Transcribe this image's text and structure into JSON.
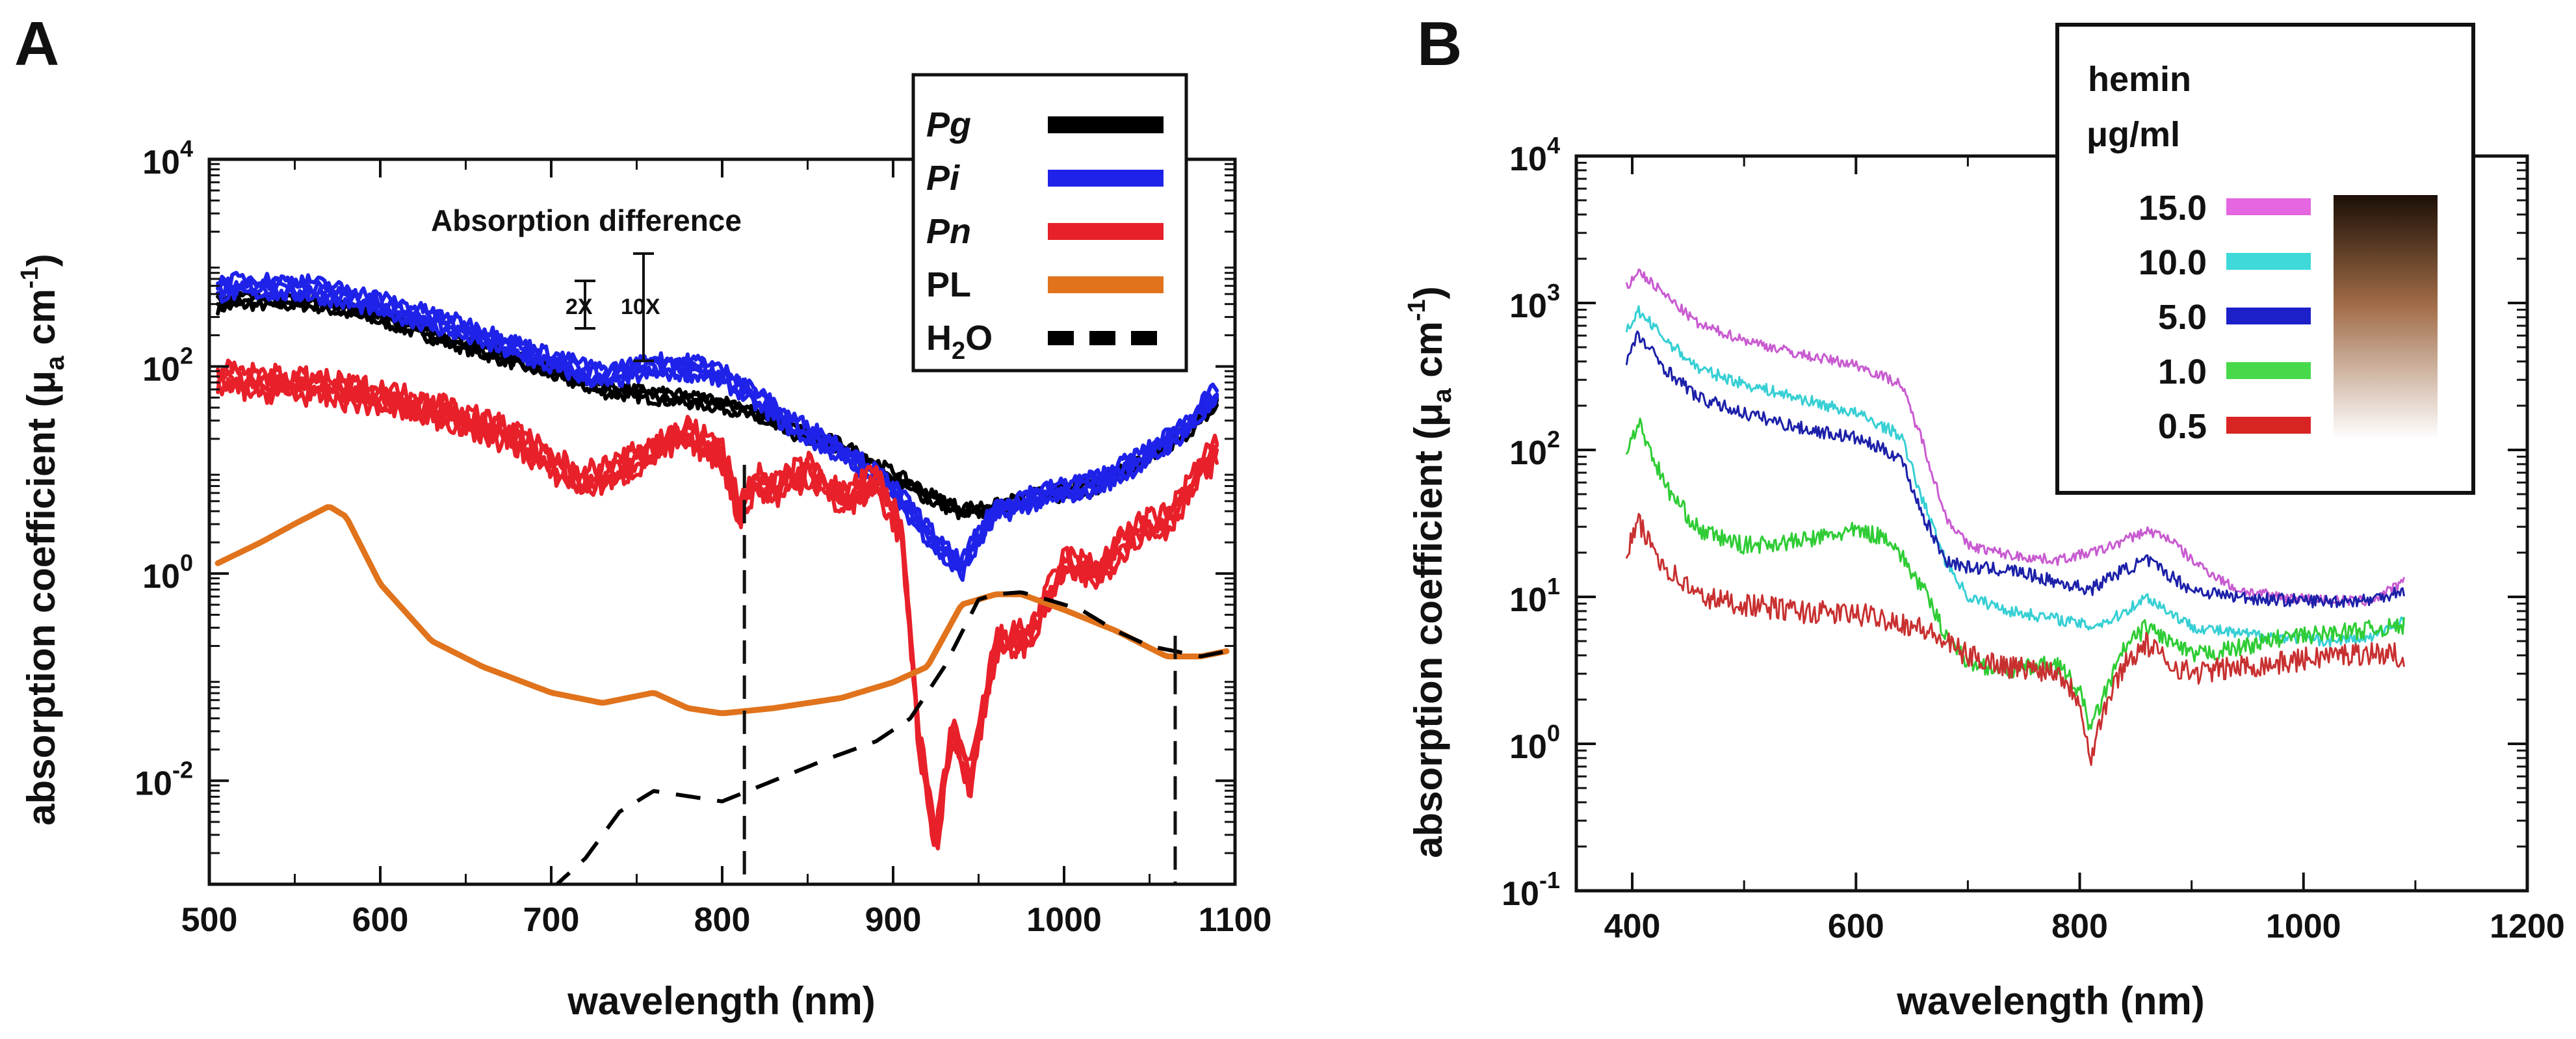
{
  "chart_data": [
    {
      "panel": "A",
      "type": "line",
      "yscale": "log",
      "xlabel": "wavelength (nm)",
      "ylabel": "absorption coefficient (μa cm-1)",
      "ylabel_parts": {
        "prefix": "absorption coefficient (",
        "mu": "μ",
        "sub": "a",
        "unit": " cm",
        "sup": "-1",
        "suffix": ")"
      },
      "xlim": [
        500,
        1100
      ],
      "ylim_log10": [
        -3.0,
        4.0
      ],
      "xticks": [
        500,
        600,
        700,
        800,
        900,
        1000,
        1100
      ],
      "xtick_labels": [
        "500",
        "600",
        "700",
        "800",
        "900",
        "1000",
        "1100"
      ],
      "yticks_log10": [
        -2,
        0,
        2,
        4
      ],
      "ytick_labels": [
        {
          "base": "10",
          "exp": "-2"
        },
        {
          "base": "10",
          "exp": "0"
        },
        {
          "base": "10",
          "exp": "2"
        },
        {
          "base": "10",
          "exp": "4"
        }
      ],
      "annotations": {
        "title": "Absorption difference",
        "scale_2x": "2X",
        "scale_10x": "10X"
      },
      "vlines_nm": [
        813,
        1065
      ],
      "legend": [
        {
          "label": "Pg",
          "italic": true,
          "color": "#000000",
          "dashed": false
        },
        {
          "label": "Pi",
          "italic": true,
          "color": "#1f22e8",
          "dashed": false
        },
        {
          "label": "Pn",
          "italic": true,
          "color": "#e8202a",
          "dashed": false
        },
        {
          "label": "PL",
          "italic": false,
          "color": "#e0731c",
          "dashed": false
        },
        {
          "label": "H",
          "sub": "2",
          "tail": "O",
          "italic": false,
          "color": "#000000",
          "dashed": true
        }
      ],
      "series": [
        {
          "name": "Pg",
          "color": "#000000",
          "width": 6,
          "noise": 0.05,
          "copies": 3,
          "spread": 0.04,
          "x": [
            505,
            520,
            560,
            600,
            650,
            700,
            730,
            760,
            790,
            810,
            840,
            870,
            900,
            920,
            940,
            960,
            980,
            1000,
            1020,
            1050,
            1070,
            1090
          ],
          "y": [
            2.6,
            2.63,
            2.62,
            2.47,
            2.2,
            1.95,
            1.78,
            1.72,
            1.66,
            1.6,
            1.38,
            1.22,
            0.95,
            0.75,
            0.6,
            0.63,
            0.73,
            0.78,
            0.86,
            1.12,
            1.35,
            1.65
          ]
        },
        {
          "name": "Pi",
          "color": "#1f22e8",
          "width": 6,
          "noise": 0.06,
          "copies": 4,
          "spread": 0.05,
          "x": [
            505,
            520,
            560,
            600,
            650,
            700,
            730,
            760,
            790,
            810,
            840,
            870,
            900,
            920,
            930,
            940,
            950,
            960,
            980,
            1000,
            1020,
            1050,
            1070,
            1090
          ],
          "y": [
            2.75,
            2.78,
            2.75,
            2.6,
            2.35,
            2.05,
            1.9,
            2.0,
            1.98,
            1.82,
            1.45,
            1.18,
            0.8,
            0.4,
            0.2,
            0.05,
            0.35,
            0.6,
            0.72,
            0.8,
            0.88,
            1.15,
            1.4,
            1.75
          ]
        },
        {
          "name": "Pn",
          "color": "#e8202a",
          "width": 6,
          "noise": 0.1,
          "copies": 4,
          "spread": 0.06,
          "x": [
            505,
            530,
            560,
            600,
            640,
            680,
            700,
            720,
            740,
            760,
            780,
            800,
            810,
            820,
            830,
            850,
            870,
            890,
            905,
            915,
            925,
            935,
            945,
            960,
            980,
            1000,
            1020,
            1040,
            1060,
            1080,
            1090
          ],
          "y": [
            1.88,
            1.84,
            1.8,
            1.7,
            1.55,
            1.3,
            1.05,
            0.9,
            1.0,
            1.2,
            1.35,
            1.15,
            0.6,
            0.9,
            0.8,
            1.0,
            0.7,
            0.9,
            0.4,
            -1.6,
            -2.6,
            -1.5,
            -2.0,
            -0.7,
            -0.6,
            0.1,
            0.0,
            0.4,
            0.5,
            1.0,
            1.2
          ]
        },
        {
          "name": "PL",
          "color": "#e0731c",
          "width": 9,
          "noise": 0.0,
          "copies": 1,
          "spread": 0.0,
          "x": [
            505,
            530,
            550,
            570,
            580,
            600,
            630,
            660,
            700,
            730,
            760,
            780,
            800,
            830,
            870,
            900,
            920,
            940,
            960,
            975,
            1000,
            1030,
            1060,
            1080,
            1095
          ],
          "y": [
            0.1,
            0.3,
            0.48,
            0.65,
            0.55,
            -0.1,
            -0.65,
            -0.9,
            -1.15,
            -1.25,
            -1.15,
            -1.3,
            -1.35,
            -1.3,
            -1.2,
            -1.05,
            -0.9,
            -0.3,
            -0.2,
            -0.2,
            -0.35,
            -0.55,
            -0.8,
            -0.8,
            -0.75
          ]
        },
        {
          "name": "H2O",
          "color": "#000000",
          "width": 6,
          "noise": 0.0,
          "copies": 1,
          "spread": 0.0,
          "dashed": true,
          "x": [
            700,
            720,
            740,
            760,
            780,
            800,
            830,
            860,
            890,
            910,
            930,
            950,
            960,
            975,
            990,
            1010,
            1030,
            1050,
            1065,
            1080,
            1095
          ],
          "y": [
            -3.05,
            -2.75,
            -2.3,
            -2.1,
            -2.15,
            -2.2,
            -2.0,
            -1.8,
            -1.62,
            -1.4,
            -0.9,
            -0.25,
            -0.2,
            -0.18,
            -0.25,
            -0.35,
            -0.55,
            -0.7,
            -0.75,
            -0.8,
            -0.75
          ]
        }
      ]
    },
    {
      "panel": "B",
      "type": "line",
      "yscale": "log",
      "xlabel": "wavelength (nm)",
      "ylabel": "absorption coefficient (μa cm-1)",
      "ylabel_parts": {
        "prefix": "absorption coefficient (",
        "mu": "μ",
        "sub": "a",
        "unit": " cm",
        "sup": "-1",
        "suffix": ")"
      },
      "xlim": [
        350,
        1200
      ],
      "ylim_log10": [
        -1.0,
        4.0
      ],
      "xticks": [
        400,
        600,
        800,
        1000,
        1200
      ],
      "xtick_labels": [
        "400",
        "600",
        "800",
        "1000",
        "1200"
      ],
      "yticks_log10": [
        -1,
        0,
        1,
        2,
        3,
        4
      ],
      "ytick_labels": [
        {
          "base": "10",
          "exp": "-1"
        },
        {
          "base": "10",
          "exp": "0"
        },
        {
          "base": "10",
          "exp": "1"
        },
        {
          "base": "10",
          "exp": "2"
        },
        {
          "base": "10",
          "exp": "3"
        },
        {
          "base": "10",
          "exp": "4"
        }
      ],
      "legend_title_line1": "hemin",
      "legend_title_line2": "μg/ml",
      "colorbar": {
        "top_color": "#1c0f06",
        "mid_color": "#a16c48",
        "bottom_color": "#ffffff"
      },
      "legend": [
        {
          "label": "15.0",
          "color": "#e466e0"
        },
        {
          "label": "10.0",
          "color": "#3fd9d9"
        },
        {
          "label": "5.0",
          "color": "#1c20c8"
        },
        {
          "label": "1.0",
          "color": "#47d94a"
        },
        {
          "label": "0.5",
          "color": "#d92424"
        }
      ],
      "series": [
        {
          "name": "15.0",
          "color": "#c85bd0",
          "width": 3,
          "noise": 0.035,
          "x": [
            395,
            405,
            430,
            460,
            500,
            550,
            600,
            640,
            660,
            680,
            700,
            740,
            780,
            820,
            860,
            880,
            900,
            940,
            980,
            1020,
            1060,
            1090
          ],
          "y": [
            3.1,
            3.22,
            3.05,
            2.85,
            2.75,
            2.65,
            2.58,
            2.45,
            2.05,
            1.55,
            1.35,
            1.28,
            1.25,
            1.32,
            1.45,
            1.4,
            1.25,
            1.05,
            1.0,
            0.98,
            0.97,
            1.1
          ]
        },
        {
          "name": "10.0",
          "color": "#36cfd4",
          "width": 3,
          "noise": 0.04,
          "x": [
            395,
            405,
            430,
            460,
            500,
            550,
            600,
            640,
            660,
            680,
            700,
            740,
            780,
            810,
            830,
            860,
            880,
            900,
            940,
            980,
            1020,
            1060,
            1090
          ],
          "y": [
            2.8,
            2.95,
            2.75,
            2.55,
            2.45,
            2.35,
            2.25,
            2.1,
            1.65,
            1.25,
            1.0,
            0.9,
            0.85,
            0.8,
            0.85,
            1.0,
            0.9,
            0.8,
            0.75,
            0.73,
            0.7,
            0.72,
            0.85
          ]
        },
        {
          "name": "5.0",
          "color": "#1c20a8",
          "width": 3,
          "noise": 0.045,
          "x": [
            395,
            405,
            430,
            460,
            500,
            550,
            600,
            640,
            660,
            680,
            700,
            740,
            780,
            810,
            830,
            860,
            880,
            900,
            940,
            980,
            1020,
            1060,
            1090
          ],
          "y": [
            2.6,
            2.78,
            2.55,
            2.35,
            2.25,
            2.15,
            2.08,
            1.95,
            1.55,
            1.25,
            1.2,
            1.18,
            1.1,
            1.05,
            1.15,
            1.25,
            1.15,
            1.05,
            1.0,
            0.98,
            0.97,
            0.98,
            1.05
          ]
        },
        {
          "name": "1.0",
          "color": "#2fcc35",
          "width": 3,
          "noise": 0.06,
          "x": [
            395,
            405,
            430,
            460,
            500,
            550,
            600,
            630,
            660,
            680,
            700,
            740,
            780,
            800,
            810,
            820,
            840,
            860,
            880,
            900,
            940,
            980,
            1020,
            1060,
            1090
          ],
          "y": [
            1.95,
            2.2,
            1.75,
            1.45,
            1.35,
            1.38,
            1.45,
            1.4,
            1.05,
            0.75,
            0.55,
            0.5,
            0.55,
            0.35,
            0.1,
            0.3,
            0.65,
            0.8,
            0.7,
            0.6,
            0.65,
            0.72,
            0.75,
            0.78,
            0.8
          ]
        },
        {
          "name": "0.5",
          "color": "#c83030",
          "width": 3,
          "noise": 0.08,
          "x": [
            395,
            405,
            430,
            460,
            500,
            550,
            600,
            630,
            660,
            700,
            740,
            780,
            800,
            810,
            820,
            840,
            860,
            880,
            900,
            940,
            980,
            1020,
            1060,
            1090
          ],
          "y": [
            1.3,
            1.5,
            1.2,
            1.0,
            0.95,
            0.9,
            0.88,
            0.85,
            0.78,
            0.6,
            0.52,
            0.5,
            0.3,
            -0.1,
            0.2,
            0.55,
            0.68,
            0.55,
            0.48,
            0.52,
            0.55,
            0.6,
            0.62,
            0.6
          ]
        }
      ]
    }
  ],
  "panel_labels": {
    "a": "A",
    "b": "B"
  }
}
